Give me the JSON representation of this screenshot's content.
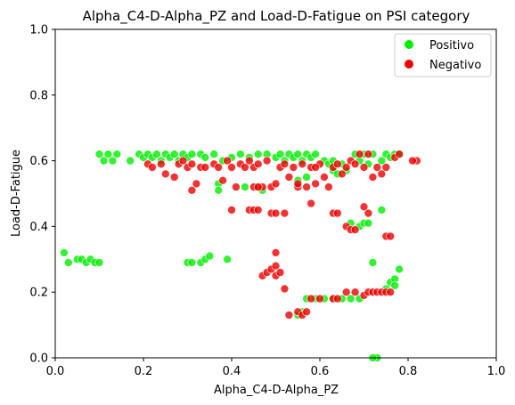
{
  "chart_data": {
    "type": "scatter",
    "title": "Alpha_C4-D-Alpha_PZ and Load-D-Fatigue on PSI category",
    "xlabel": "Alpha_C4-D-Alpha_PZ",
    "ylabel": "Load-D-Fatigue",
    "xlim": [
      0.0,
      1.0
    ],
    "ylim": [
      0.0,
      1.0
    ],
    "xticks": [
      "0.0",
      "0.2",
      "0.4",
      "0.6",
      "0.8",
      "1.0"
    ],
    "yticks": [
      "0.0",
      "0.2",
      "0.4",
      "0.6",
      "0.8",
      "1.0"
    ],
    "grid": false,
    "legend_position": "top-right",
    "series": [
      {
        "name": "Positivo",
        "color": "#00ee00",
        "points": [
          [
            0.1,
            0.62
          ],
          [
            0.11,
            0.6
          ],
          [
            0.12,
            0.62
          ],
          [
            0.13,
            0.6
          ],
          [
            0.14,
            0.62
          ],
          [
            0.17,
            0.6
          ],
          [
            0.19,
            0.62
          ],
          [
            0.2,
            0.61
          ],
          [
            0.21,
            0.62
          ],
          [
            0.22,
            0.61
          ],
          [
            0.23,
            0.62
          ],
          [
            0.24,
            0.6
          ],
          [
            0.25,
            0.62
          ],
          [
            0.26,
            0.61
          ],
          [
            0.27,
            0.62
          ],
          [
            0.28,
            0.6
          ],
          [
            0.29,
            0.62
          ],
          [
            0.3,
            0.61
          ],
          [
            0.31,
            0.62
          ],
          [
            0.33,
            0.62
          ],
          [
            0.34,
            0.61
          ],
          [
            0.36,
            0.62
          ],
          [
            0.37,
            0.53
          ],
          [
            0.37,
            0.51
          ],
          [
            0.38,
            0.6
          ],
          [
            0.4,
            0.61
          ],
          [
            0.42,
            0.62
          ],
          [
            0.44,
            0.61
          ],
          [
            0.46,
            0.62
          ],
          [
            0.48,
            0.62
          ],
          [
            0.5,
            0.61
          ],
          [
            0.51,
            0.62
          ],
          [
            0.52,
            0.6
          ],
          [
            0.53,
            0.62
          ],
          [
            0.54,
            0.61
          ],
          [
            0.55,
            0.62
          ],
          [
            0.56,
            0.6
          ],
          [
            0.57,
            0.62
          ],
          [
            0.58,
            0.61
          ],
          [
            0.59,
            0.62
          ],
          [
            0.61,
            0.6
          ],
          [
            0.62,
            0.59
          ],
          [
            0.63,
            0.6
          ],
          [
            0.65,
            0.59
          ],
          [
            0.66,
            0.57
          ],
          [
            0.68,
            0.62
          ],
          [
            0.69,
            0.6
          ],
          [
            0.7,
            0.62
          ],
          [
            0.71,
            0.59
          ],
          [
            0.72,
            0.62
          ],
          [
            0.74,
            0.6
          ],
          [
            0.75,
            0.62
          ],
          [
            0.76,
            0.61
          ],
          [
            0.77,
            0.62
          ],
          [
            0.78,
            0.62
          ],
          [
            0.55,
            0.54
          ],
          [
            0.57,
            0.55
          ],
          [
            0.63,
            0.57
          ],
          [
            0.64,
            0.56
          ],
          [
            0.67,
            0.41
          ],
          [
            0.69,
            0.4
          ],
          [
            0.7,
            0.41
          ],
          [
            0.71,
            0.41
          ],
          [
            0.74,
            0.45
          ],
          [
            0.02,
            0.32
          ],
          [
            0.03,
            0.29
          ],
          [
            0.05,
            0.3
          ],
          [
            0.06,
            0.3
          ],
          [
            0.07,
            0.29
          ],
          [
            0.08,
            0.3
          ],
          [
            0.09,
            0.29
          ],
          [
            0.1,
            0.29
          ],
          [
            0.3,
            0.29
          ],
          [
            0.31,
            0.29
          ],
          [
            0.33,
            0.29
          ],
          [
            0.34,
            0.3
          ],
          [
            0.35,
            0.31
          ],
          [
            0.39,
            0.3
          ],
          [
            0.57,
            0.18
          ],
          [
            0.59,
            0.18
          ],
          [
            0.61,
            0.18
          ],
          [
            0.63,
            0.18
          ],
          [
            0.65,
            0.18
          ],
          [
            0.67,
            0.18
          ],
          [
            0.69,
            0.18
          ],
          [
            0.72,
            0.29
          ],
          [
            0.75,
            0.21
          ],
          [
            0.76,
            0.23
          ],
          [
            0.77,
            0.24
          ],
          [
            0.78,
            0.27
          ],
          [
            0.77,
            0.22
          ],
          [
            0.73,
            0.0
          ],
          [
            0.72,
            0.0
          ],
          [
            0.56,
            0.14
          ],
          [
            0.55,
            0.13
          ],
          [
            0.46,
            0.52
          ],
          [
            0.43,
            0.52
          ],
          [
            0.47,
            0.51
          ]
        ]
      },
      {
        "name": "Negativo",
        "color": "#ee0000",
        "points": [
          [
            0.21,
            0.59
          ],
          [
            0.22,
            0.58
          ],
          [
            0.24,
            0.59
          ],
          [
            0.25,
            0.56
          ],
          [
            0.27,
            0.55
          ],
          [
            0.28,
            0.59
          ],
          [
            0.29,
            0.6
          ],
          [
            0.3,
            0.58
          ],
          [
            0.31,
            0.51
          ],
          [
            0.32,
            0.53
          ],
          [
            0.31,
            0.59
          ],
          [
            0.33,
            0.58
          ],
          [
            0.34,
            0.58
          ],
          [
            0.36,
            0.59
          ],
          [
            0.37,
            0.58
          ],
          [
            0.38,
            0.54
          ],
          [
            0.39,
            0.6
          ],
          [
            0.4,
            0.58
          ],
          [
            0.41,
            0.52
          ],
          [
            0.42,
            0.59
          ],
          [
            0.43,
            0.58
          ],
          [
            0.44,
            0.6
          ],
          [
            0.45,
            0.58
          ],
          [
            0.46,
            0.59
          ],
          [
            0.47,
            0.52
          ],
          [
            0.48,
            0.6
          ],
          [
            0.49,
            0.52
          ],
          [
            0.5,
            0.53
          ],
          [
            0.51,
            0.58
          ],
          [
            0.52,
            0.59
          ],
          [
            0.53,
            0.55
          ],
          [
            0.54,
            0.58
          ],
          [
            0.55,
            0.52
          ],
          [
            0.56,
            0.59
          ],
          [
            0.57,
            0.52
          ],
          [
            0.58,
            0.58
          ],
          [
            0.59,
            0.53
          ],
          [
            0.6,
            0.59
          ],
          [
            0.61,
            0.55
          ],
          [
            0.62,
            0.52
          ],
          [
            0.63,
            0.58
          ],
          [
            0.64,
            0.59
          ],
          [
            0.65,
            0.56
          ],
          [
            0.66,
            0.58
          ],
          [
            0.67,
            0.6
          ],
          [
            0.68,
            0.59
          ],
          [
            0.69,
            0.62
          ],
          [
            0.7,
            0.58
          ],
          [
            0.71,
            0.62
          ],
          [
            0.72,
            0.55
          ],
          [
            0.73,
            0.58
          ],
          [
            0.74,
            0.56
          ],
          [
            0.75,
            0.58
          ],
          [
            0.77,
            0.61
          ],
          [
            0.78,
            0.62
          ],
          [
            0.82,
            0.6
          ],
          [
            0.81,
            0.6
          ],
          [
            0.4,
            0.45
          ],
          [
            0.44,
            0.45
          ],
          [
            0.45,
            0.45
          ],
          [
            0.46,
            0.45
          ],
          [
            0.49,
            0.44
          ],
          [
            0.5,
            0.44
          ],
          [
            0.58,
            0.47
          ],
          [
            0.63,
            0.44
          ],
          [
            0.64,
            0.44
          ],
          [
            0.66,
            0.4
          ],
          [
            0.67,
            0.39
          ],
          [
            0.68,
            0.39
          ],
          [
            0.7,
            0.46
          ],
          [
            0.71,
            0.44
          ],
          [
            0.75,
            0.37
          ],
          [
            0.76,
            0.37
          ],
          [
            0.47,
            0.25
          ],
          [
            0.48,
            0.26
          ],
          [
            0.49,
            0.27
          ],
          [
            0.5,
            0.25
          ],
          [
            0.5,
            0.28
          ],
          [
            0.51,
            0.26
          ],
          [
            0.5,
            0.32
          ],
          [
            0.52,
            0.21
          ],
          [
            0.53,
            0.13
          ],
          [
            0.55,
            0.14
          ],
          [
            0.56,
            0.13
          ],
          [
            0.57,
            0.14
          ],
          [
            0.58,
            0.18
          ],
          [
            0.6,
            0.18
          ],
          [
            0.63,
            0.18
          ],
          [
            0.64,
            0.18
          ],
          [
            0.66,
            0.2
          ],
          [
            0.68,
            0.2
          ],
          [
            0.7,
            0.19
          ],
          [
            0.71,
            0.2
          ],
          [
            0.72,
            0.2
          ],
          [
            0.73,
            0.2
          ],
          [
            0.74,
            0.2
          ],
          [
            0.75,
            0.2
          ],
          [
            0.76,
            0.2
          ],
          [
            0.45,
            0.52
          ],
          [
            0.46,
            0.52
          ],
          [
            0.52,
            0.44
          ],
          [
            0.55,
            0.53
          ],
          [
            0.59,
            0.58
          ]
        ]
      }
    ]
  }
}
